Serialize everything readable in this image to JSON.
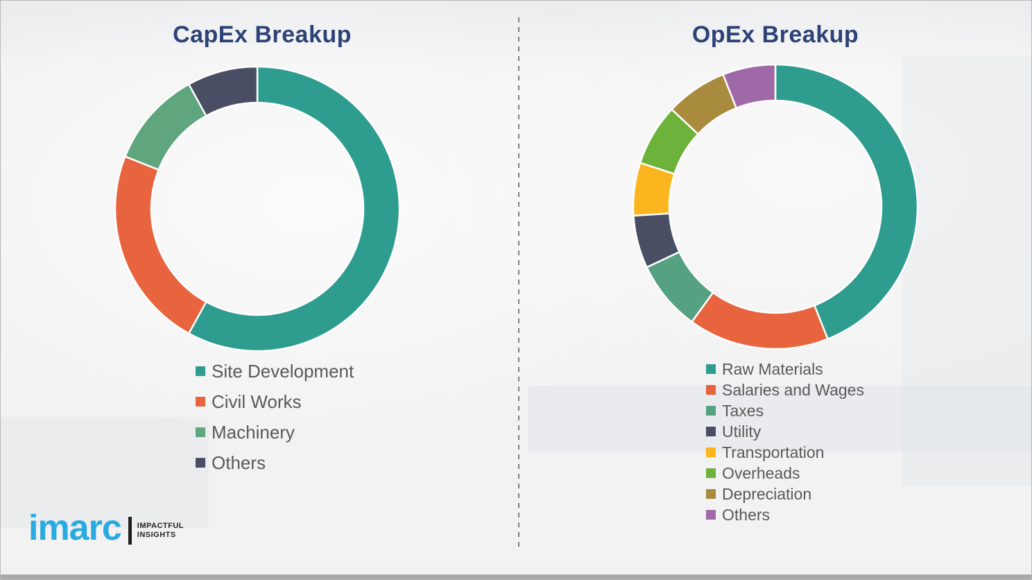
{
  "page": {
    "background_color": "#f2f2f3",
    "divider_style": "vertical-dashed",
    "bottom_bar_color": "#a9a9a9"
  },
  "logo": {
    "brand": "imarc",
    "brand_color": "#29abe2",
    "tagline_line1": "IMPACTFUL",
    "tagline_line2": "INSIGHTS"
  },
  "chart_data": [
    {
      "type": "pie",
      "subtype": "donut",
      "title": "CapEx Breakup",
      "title_color": "#2d4377",
      "legend_position": "below-left",
      "start_angle_deg": 0,
      "direction": "clockwise",
      "values_unit": "percent (estimated from arc angles)",
      "segments": [
        {
          "label": "Site Development",
          "value": 58,
          "color": "#2e9c8f"
        },
        {
          "label": "Civil Works",
          "value": 23,
          "color": "#e7643f"
        },
        {
          "label": "Machinery",
          "value": 11,
          "color": "#5fa57d"
        },
        {
          "label": "Others",
          "value": 8,
          "color": "#4a4e64"
        }
      ]
    },
    {
      "type": "pie",
      "subtype": "donut",
      "title": "OpEx Breakup",
      "title_color": "#2d4377",
      "legend_position": "below-left",
      "start_angle_deg": 0,
      "direction": "clockwise",
      "values_unit": "percent (estimated from arc angles)",
      "segments": [
        {
          "label": "Raw Materials",
          "value": 44,
          "color": "#2e9c8f"
        },
        {
          "label": "Salaries and Wages",
          "value": 16,
          "color": "#e7643f"
        },
        {
          "label": "Taxes",
          "value": 8,
          "color": "#55a182"
        },
        {
          "label": "Utility",
          "value": 6,
          "color": "#4a4e64"
        },
        {
          "label": "Transportation",
          "value": 6,
          "color": "#fbb51f"
        },
        {
          "label": "Overheads",
          "value": 7,
          "color": "#6db23a"
        },
        {
          "label": "Depreciation",
          "value": 7,
          "color": "#a98b3e"
        },
        {
          "label": "Others",
          "value": 6,
          "color": "#9e69a6"
        }
      ]
    }
  ]
}
